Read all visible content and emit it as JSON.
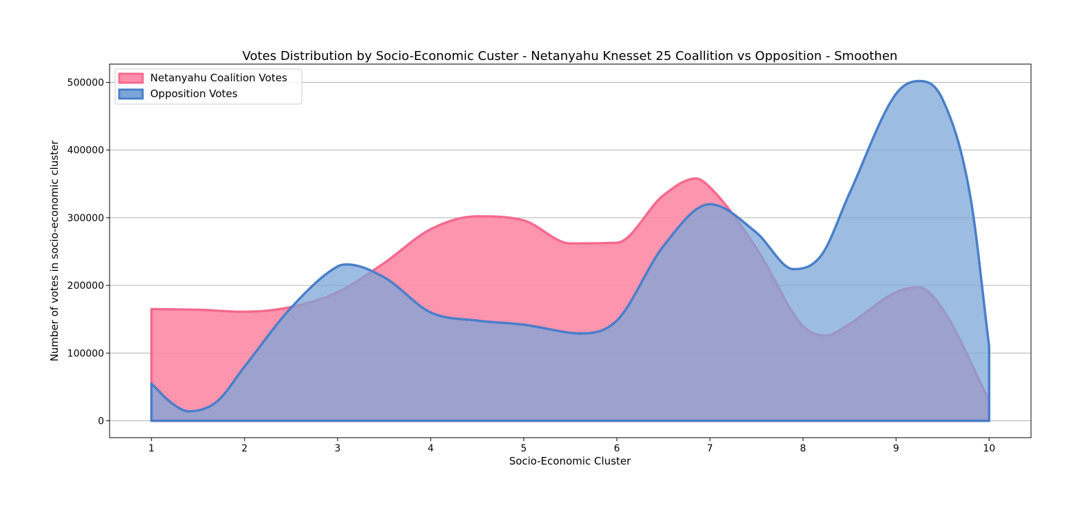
{
  "chart_data": {
    "type": "area",
    "title": "Votes Distribution by Socio-Economic Custer - Netanyahu Knesset 25 Coallition vs Opposition - Smoothen",
    "xlabel": "Socio-Economic Cluster",
    "ylabel": "Number of votes in socio-economic cluster",
    "xlim": [
      0.55,
      10.45
    ],
    "ylim": [
      -25000,
      527000
    ],
    "xticks": [
      1,
      2,
      3,
      4,
      5,
      6,
      7,
      8,
      9,
      10
    ],
    "yticks": [
      0,
      100000,
      200000,
      300000,
      400000,
      500000
    ],
    "grid": "horizontal",
    "legend_position": "top-left",
    "series": [
      {
        "name": "Netanyahu Coalition Votes",
        "fill_color": "#fe8fab",
        "edge_color": "#f5698f",
        "x": [
          1,
          1.5,
          2,
          2.5,
          3,
          3.5,
          4,
          4.5,
          5,
          5.5,
          6,
          6.5,
          6.85,
          7,
          7.5,
          8,
          8.25,
          8.5,
          9,
          9.25,
          9.5,
          10
        ],
        "y": [
          165000,
          164000,
          161000,
          168000,
          190000,
          233000,
          283000,
          302000,
          296000,
          262000,
          263000,
          333000,
          358000,
          345000,
          255000,
          140000,
          126000,
          143000,
          190000,
          197000,
          165000,
          30000
        ]
      },
      {
        "name": "Opposition Votes",
        "fill_color": "#7ca5d8",
        "edge_color": "#4a7fc9",
        "x": [
          1,
          1.2,
          1.4,
          1.7,
          2,
          2.5,
          3,
          3.1,
          3.5,
          4,
          4.5,
          5,
          5.5,
          5.6,
          6,
          6.5,
          7,
          7.5,
          7.9,
          8.2,
          8.5,
          9,
          9.25,
          9.5,
          9.8,
          10
        ],
        "y": [
          55000,
          28000,
          14000,
          28000,
          80000,
          167000,
          228000,
          231000,
          212000,
          160000,
          148000,
          142000,
          130000,
          129000,
          148000,
          258000,
          320000,
          278000,
          224000,
          245000,
          336000,
          483000,
          502000,
          475000,
          330000,
          110000
        ]
      }
    ]
  }
}
